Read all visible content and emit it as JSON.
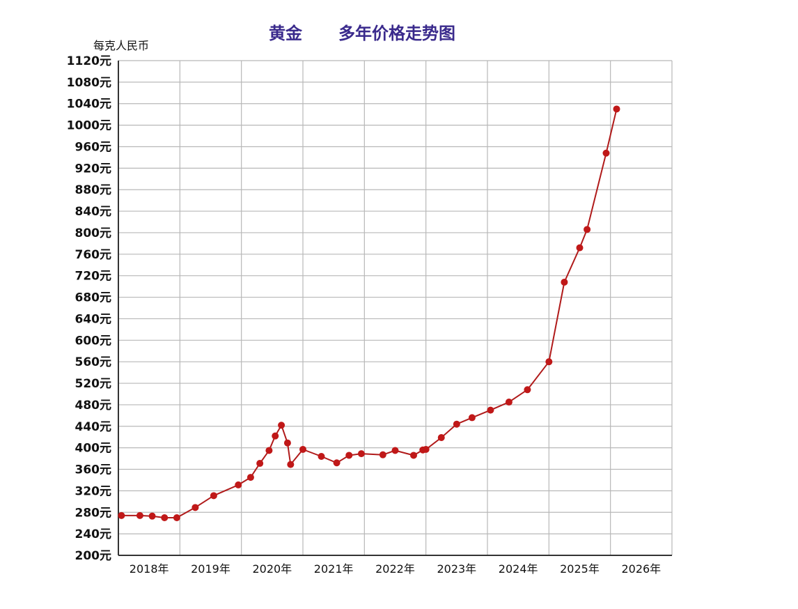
{
  "header": {
    "title_part1": "黄金",
    "title_part2": "多年价格走势图",
    "unit_label": "每克人民币"
  },
  "colors": {
    "line": "#b01a1a",
    "point": "#c01818",
    "grid": "#b8b8b8",
    "title": "#3a2a8c"
  },
  "chart_data": {
    "type": "line",
    "title": "黄金 多年价格走势图",
    "ylabel": "每克人民币",
    "xlabel": "",
    "xlim": [
      2017.0,
      2026.0
    ],
    "ylim": [
      200,
      1120
    ],
    "grid": true,
    "y_ticks": [
      200,
      240,
      280,
      320,
      360,
      400,
      440,
      480,
      520,
      560,
      600,
      640,
      680,
      720,
      760,
      800,
      840,
      880,
      920,
      960,
      1000,
      1040,
      1080,
      1120
    ],
    "y_tick_labels": [
      "200元",
      "240元",
      "280元",
      "320元",
      "360元",
      "400元",
      "440元",
      "480元",
      "520元",
      "560元",
      "600元",
      "640元",
      "680元",
      "720元",
      "760元",
      "800元",
      "840元",
      "880元",
      "920元",
      "960元",
      "1000元",
      "1040元",
      "1080元",
      "1120元"
    ],
    "x_ticks": [
      2017.5,
      2018.5,
      2019.5,
      2020.5,
      2021.5,
      2022.5,
      2023.5,
      2024.5,
      2025.5
    ],
    "x_tick_labels": [
      "2018年",
      "2019年",
      "2020年",
      "2021年",
      "2022年",
      "2023年",
      "2024年",
      "2025年",
      "2026年"
    ],
    "series": [
      {
        "x": [
          2017.05,
          2017.35,
          2017.55,
          2017.75,
          2017.95,
          2018.25,
          2018.55,
          2018.95,
          2019.15,
          2019.3,
          2019.45,
          2019.55,
          2019.65,
          2019.75,
          2019.8,
          2020.0,
          2020.3,
          2020.55,
          2020.75,
          2020.95,
          2021.3,
          2021.5,
          2021.8,
          2021.95,
          2022.0,
          2022.25,
          2022.5,
          2022.75,
          2023.05,
          2023.35,
          2023.65,
          2024.0,
          2024.25,
          2024.5,
          2024.62,
          2024.93,
          2025.1
        ],
        "y": [
          274,
          274,
          273,
          270,
          270,
          289,
          311,
          331,
          345,
          371,
          395,
          422,
          442,
          409,
          369,
          397,
          384,
          372,
          386,
          389,
          387,
          395,
          386,
          396,
          397,
          419,
          444,
          456,
          470,
          485,
          508,
          560,
          708,
          772,
          806,
          948,
          1030
        ]
      }
    ]
  }
}
